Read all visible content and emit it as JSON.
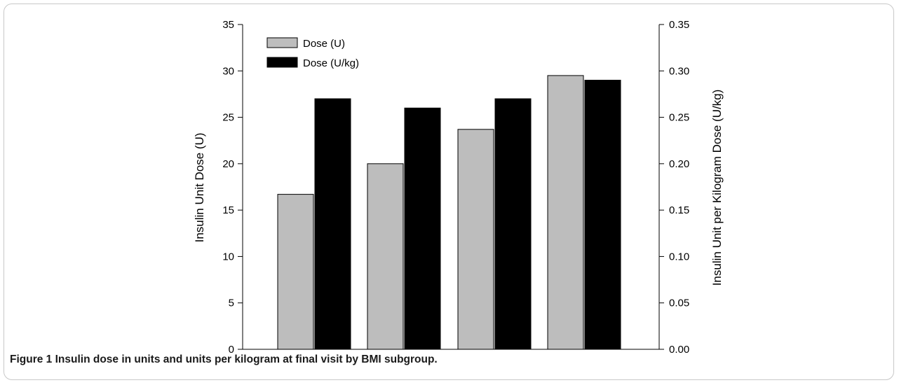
{
  "chart_data": {
    "type": "bar",
    "categories": [
      "",
      "",
      "",
      ""
    ],
    "series": [
      {
        "name": "Dose (U)",
        "axis": "left",
        "color": "#bdbdbd",
        "values": [
          16.7,
          20.0,
          23.7,
          29.5
        ]
      },
      {
        "name": "Dose (U/kg)",
        "axis": "right",
        "color": "#000000",
        "values": [
          0.27,
          0.26,
          0.27,
          0.29
        ]
      }
    ],
    "ylabel": "Insulin Unit Dose (U)",
    "ylabel_right": "Insulin Unit per Kilogram Dose (U/kg)",
    "ylim": [
      0,
      35
    ],
    "ylim_right": [
      0,
      0.35
    ],
    "yticks": [
      "0",
      "5",
      "10",
      "15",
      "20",
      "25",
      "30",
      "35"
    ],
    "yticks_right": [
      "0.00",
      "0.05",
      "0.10",
      "0.15",
      "0.20",
      "0.25",
      "0.30",
      "0.35"
    ],
    "grid": false,
    "legend_position": "top-left"
  },
  "caption": {
    "label": "Figure 1",
    "text": "Insulin dose in units and units per kilogram at final visit by BMI subgroup."
  }
}
